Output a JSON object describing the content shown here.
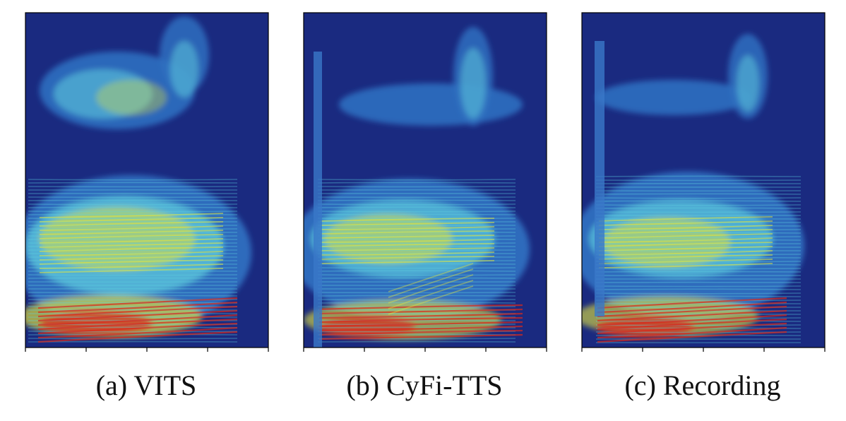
{
  "figure": {
    "panels": [
      {
        "id": "a",
        "caption": "(a)  VITS"
      },
      {
        "id": "b",
        "caption": "(b)  CyFi-TTS"
      },
      {
        "id": "c",
        "caption": "(c)  Recording"
      }
    ]
  },
  "chart_data": [
    {
      "type": "heatmap",
      "title": "(a)  VITS",
      "xlabel": "",
      "ylabel": "",
      "colormap": "jet",
      "background_color": "#1a2a80",
      "x_ticks": 5,
      "y_ticks": 0,
      "grid": false,
      "description": "Mel-spectrogram; strong low-frequency harmonics (red) over the first half, yellow mid-band harmonics, separate high-frequency formant band with rising cluster at right"
    },
    {
      "type": "heatmap",
      "title": "(b)  CyFi-TTS",
      "xlabel": "",
      "ylabel": "",
      "colormap": "jet",
      "background_color": "#1a2a80",
      "x_ticks": 5,
      "y_ticks": 0,
      "grid": false,
      "description": "Mel-spectrogram; vertical onset stripe at left, red low harmonics, diagonal rising harmonic, thin upper band with tall cluster at right"
    },
    {
      "type": "heatmap",
      "title": "(c)  Recording",
      "xlabel": "",
      "ylabel": "",
      "colormap": "jet",
      "background_color": "#1a2a80",
      "x_ticks": 5,
      "y_ticks": 0,
      "grid": false,
      "description": "Mel-spectrogram of ground-truth audio; vertical onset stripe, red low harmonics, yellow mid-band, upper band with cluster at right"
    }
  ],
  "colors": {
    "background": "#1a2a80",
    "low": "#2f6fc0",
    "mid": "#5fd0e0",
    "high": "#e6e63a",
    "peak": "#d82a1c"
  }
}
